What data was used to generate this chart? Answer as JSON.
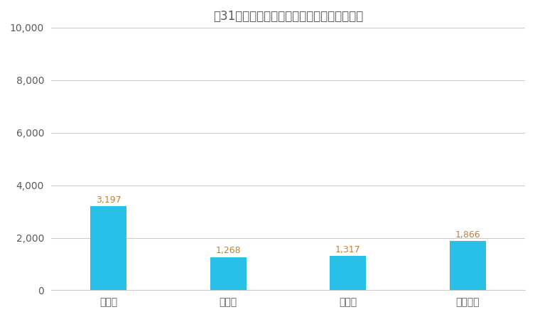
{
  "title": "築31年以上のマンションの売却相場（万円）",
  "categories": [
    "東京都",
    "埼玉県",
    "千葉県",
    "神奈川県"
  ],
  "values": [
    3197,
    1268,
    1317,
    1866
  ],
  "bar_color": "#29C0E8",
  "label_color": "#C0813C",
  "title_color": "#5a5a5a",
  "axis_label_color": "#5a5a5a",
  "tick_color": "#5a5a5a",
  "ylim": [
    0,
    10000
  ],
  "yticks": [
    0,
    2000,
    4000,
    6000,
    8000,
    10000
  ],
  "grid_color": "#cccccc",
  "background_color": "#ffffff",
  "title_fontsize": 12,
  "label_fontsize": 9,
  "tick_fontsize": 10
}
